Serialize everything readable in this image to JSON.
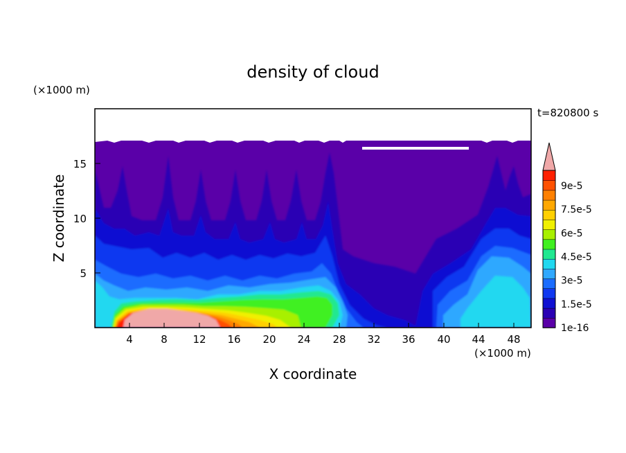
{
  "chart_data": {
    "type": "heatmap",
    "title": "density of cloud",
    "xlabel": "X coordinate",
    "ylabel": "Z coordinate",
    "x_unit": "(×1000 m)",
    "y_unit": "(×1000 m)",
    "time_label": "t=820800 s",
    "xlim": [
      0,
      50
    ],
    "ylim": [
      0,
      20
    ],
    "x_ticks": [
      "4",
      "8",
      "12",
      "16",
      "20",
      "24",
      "28",
      "32",
      "36",
      "40",
      "44",
      "48"
    ],
    "y_ticks": [
      "5",
      "10",
      "15"
    ],
    "colorbar": {
      "labels": [
        "1e-16",
        "1.5e-5",
        "3e-5",
        "4.5e-5",
        "6e-5",
        "7.5e-5",
        "9e-5"
      ],
      "colors": [
        "#5a00a8",
        "#2a00b4",
        "#1010d2",
        "#1038f0",
        "#1a6cff",
        "#2fa8ff",
        "#20d8f0",
        "#20e890",
        "#40f020",
        "#a8f000",
        "#f0f000",
        "#ffd000",
        "#ffa800",
        "#ff8000",
        "#ff5000",
        "#ff2000",
        "#f0a8a8"
      ]
    },
    "features": [
      {
        "label": "cloud top",
        "z_top": 17
      },
      {
        "label": "maximum density region",
        "x_range": [
          4,
          15
        ],
        "z_range": [
          0,
          2
        ],
        "value": "over 9e-5"
      },
      {
        "label": "secondary maximum",
        "x_range": [
          44,
          49
        ],
        "z_range": [
          1,
          5
        ],
        "value": "about 4e-5"
      }
    ]
  }
}
